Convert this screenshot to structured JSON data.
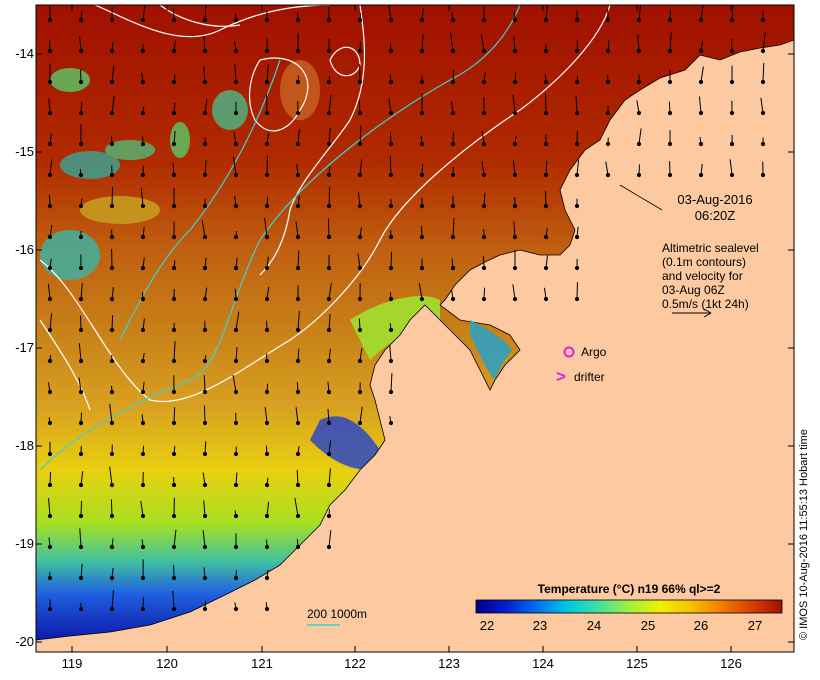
{
  "map": {
    "timestamp_date": "03-Aug-2016",
    "timestamp_time": "06:20Z",
    "legend_lines": [
      "Altimetric sealevel",
      "(0.1m contours)",
      "and velocity for",
      "03-Aug 06Z",
      "0.5m/s (1kt 24h)"
    ],
    "argo_label": "Argo",
    "drifter_label": "drifter",
    "drifter_symbol": ">",
    "bathymetry_label": "200  1000m",
    "copyright": "© IMOS 10-Aug-2016 11:55:13 Hobart time",
    "colorbar": {
      "title": "Temperature (°C) n19 66% ql>=2",
      "ticks": [
        "22",
        "23",
        "24",
        "25",
        "26",
        "27"
      ]
    },
    "axes": {
      "latitude_ticks": [
        "-14",
        "-15",
        "-16",
        "-17",
        "-18",
        "-19",
        "-20"
      ],
      "longitude_ticks": [
        "119",
        "120",
        "121",
        "122",
        "123",
        "124",
        "125",
        "126"
      ]
    },
    "colors": {
      "land": "#fcc9a0",
      "hot": "#a01000",
      "contour": "#ffffff",
      "bathymetry_200m": "#40d0d0",
      "argo": "#e020e0",
      "drifter": "#e020e0"
    }
  }
}
